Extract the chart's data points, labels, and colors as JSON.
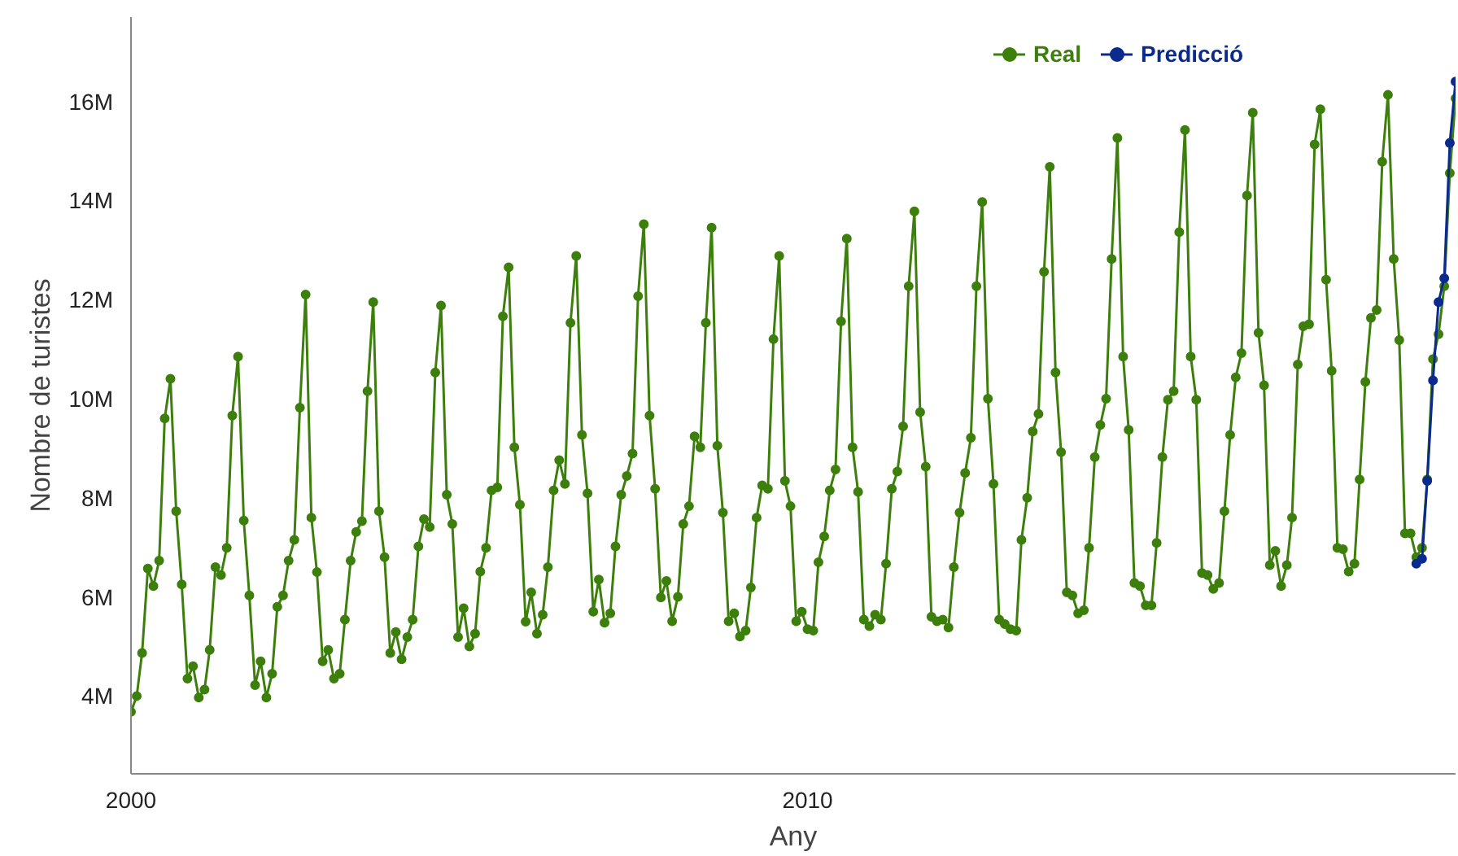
{
  "chart_data": {
    "type": "line",
    "xlabel": "Any",
    "ylabel": "Nombre de turistes",
    "xlim": [
      "2000-01",
      "2019-08"
    ],
    "xticks": [
      {
        "value": "2000-01",
        "label": "2000"
      },
      {
        "value": "2010-01",
        "label": "2010"
      }
    ],
    "ylim": [
      2.43,
      17.7
    ],
    "yticks": [
      {
        "value": 4,
        "label": "4M"
      },
      {
        "value": 6,
        "label": "6M"
      },
      {
        "value": 8,
        "label": "8M"
      },
      {
        "value": 10,
        "label": "10M"
      },
      {
        "value": 12,
        "label": "12M"
      },
      {
        "value": 14,
        "label": "14M"
      },
      {
        "value": 16,
        "label": "16M"
      }
    ],
    "grid": false,
    "legend": "top right",
    "marker": "circle",
    "line_style": "solid",
    "series": [
      {
        "name": "Real",
        "color": "#3d7f0c",
        "x": [
          "2000-01",
          "2000-02",
          "2000-03",
          "2000-04",
          "2000-05",
          "2000-06",
          "2000-07",
          "2000-08",
          "2000-09",
          "2000-10",
          "2000-11",
          "2000-12",
          "2001-01",
          "2001-02",
          "2001-03",
          "2001-04",
          "2001-05",
          "2001-06",
          "2001-07",
          "2001-08",
          "2001-09",
          "2001-10",
          "2001-11",
          "2001-12",
          "2002-01",
          "2002-02",
          "2002-03",
          "2002-04",
          "2002-05",
          "2002-06",
          "2002-07",
          "2002-08",
          "2002-09",
          "2002-10",
          "2002-11",
          "2002-12",
          "2003-01",
          "2003-02",
          "2003-03",
          "2003-04",
          "2003-05",
          "2003-06",
          "2003-07",
          "2003-08",
          "2003-09",
          "2003-10",
          "2003-11",
          "2003-12",
          "2004-01",
          "2004-02",
          "2004-03",
          "2004-04",
          "2004-05",
          "2004-06",
          "2004-07",
          "2004-08",
          "2004-09",
          "2004-10",
          "2004-11",
          "2004-12",
          "2005-01",
          "2005-02",
          "2005-03",
          "2005-04",
          "2005-05",
          "2005-06",
          "2005-07",
          "2005-08",
          "2005-09",
          "2005-10",
          "2005-11",
          "2005-12",
          "2006-01",
          "2006-02",
          "2006-03",
          "2006-04",
          "2006-05",
          "2006-06",
          "2006-07",
          "2006-08",
          "2006-09",
          "2006-10",
          "2006-11",
          "2006-12",
          "2007-01",
          "2007-02",
          "2007-03",
          "2007-04",
          "2007-05",
          "2007-06",
          "2007-07",
          "2007-08",
          "2007-09",
          "2007-10",
          "2007-11",
          "2007-12",
          "2008-01",
          "2008-02",
          "2008-03",
          "2008-04",
          "2008-05",
          "2008-06",
          "2008-07",
          "2008-08",
          "2008-09",
          "2008-10",
          "2008-11",
          "2008-12",
          "2009-01",
          "2009-02",
          "2009-03",
          "2009-04",
          "2009-05",
          "2009-06",
          "2009-07",
          "2009-08",
          "2009-09",
          "2009-10",
          "2009-11",
          "2009-12",
          "2010-01",
          "2010-02",
          "2010-03",
          "2010-04",
          "2010-05",
          "2010-06",
          "2010-07",
          "2010-08",
          "2010-09",
          "2010-10",
          "2010-11",
          "2010-12",
          "2011-01",
          "2011-02",
          "2011-03",
          "2011-04",
          "2011-05",
          "2011-06",
          "2011-07",
          "2011-08",
          "2011-09",
          "2011-10",
          "2011-11",
          "2011-12",
          "2012-01",
          "2012-02",
          "2012-03",
          "2012-04",
          "2012-05",
          "2012-06",
          "2012-07",
          "2012-08",
          "2012-09",
          "2012-10",
          "2012-11",
          "2012-12",
          "2013-01",
          "2013-02",
          "2013-03",
          "2013-04",
          "2013-05",
          "2013-06",
          "2013-07",
          "2013-08",
          "2013-09",
          "2013-10",
          "2013-11",
          "2013-12",
          "2014-01",
          "2014-02",
          "2014-03",
          "2014-04",
          "2014-05",
          "2014-06",
          "2014-07",
          "2014-08",
          "2014-09",
          "2014-10",
          "2014-11",
          "2014-12",
          "2015-01",
          "2015-02",
          "2015-03",
          "2015-04",
          "2015-05",
          "2015-06",
          "2015-07",
          "2015-08",
          "2015-09",
          "2015-10",
          "2015-11",
          "2015-12",
          "2016-01",
          "2016-02",
          "2016-03",
          "2016-04",
          "2016-05",
          "2016-06",
          "2016-07",
          "2016-08",
          "2016-09",
          "2016-10",
          "2016-11",
          "2016-12",
          "2017-01",
          "2017-02",
          "2017-03",
          "2017-04",
          "2017-05",
          "2017-06",
          "2017-07",
          "2017-08",
          "2017-09",
          "2017-10",
          "2017-11",
          "2017-12",
          "2018-01",
          "2018-02",
          "2018-03",
          "2018-04",
          "2018-05",
          "2018-06",
          "2018-07",
          "2018-08",
          "2018-09",
          "2018-10",
          "2018-11",
          "2018-12",
          "2019-01",
          "2019-02",
          "2019-03",
          "2019-04",
          "2019-05",
          "2019-06",
          "2019-07",
          "2019-08"
        ],
        "values": [
          3.68,
          4.0,
          4.87,
          6.57,
          6.22,
          6.73,
          9.6,
          10.4,
          7.73,
          6.25,
          4.35,
          4.6,
          3.97,
          4.13,
          4.93,
          6.6,
          6.44,
          6.99,
          9.66,
          10.85,
          7.54,
          6.03,
          4.22,
          4.7,
          3.97,
          4.45,
          5.8,
          6.03,
          6.73,
          7.15,
          9.82,
          12.1,
          7.6,
          6.5,
          4.7,
          4.93,
          4.35,
          4.45,
          5.54,
          6.73,
          7.31,
          7.53,
          10.15,
          11.95,
          7.73,
          6.8,
          4.87,
          5.29,
          4.74,
          5.19,
          5.54,
          7.02,
          7.57,
          7.41,
          10.53,
          11.88,
          8.06,
          7.47,
          5.19,
          5.77,
          5.0,
          5.26,
          6.51,
          6.99,
          8.15,
          8.21,
          11.66,
          12.65,
          9.02,
          7.86,
          5.5,
          6.09,
          5.26,
          5.64,
          6.6,
          8.15,
          8.76,
          8.28,
          11.53,
          12.88,
          9.27,
          8.09,
          5.7,
          6.35,
          5.48,
          5.67,
          7.02,
          8.06,
          8.44,
          8.89,
          12.07,
          13.52,
          9.66,
          8.18,
          5.99,
          6.32,
          5.51,
          6.0,
          7.47,
          7.83,
          9.24,
          9.02,
          11.53,
          13.45,
          9.05,
          7.7,
          5.51,
          5.67,
          5.2,
          5.32,
          6.19,
          7.6,
          8.25,
          8.18,
          11.2,
          12.88,
          8.34,
          7.83,
          5.51,
          5.7,
          5.35,
          5.32,
          6.7,
          7.22,
          8.15,
          8.57,
          11.56,
          13.23,
          9.02,
          8.12,
          5.54,
          5.41,
          5.64,
          5.54,
          6.67,
          8.18,
          8.53,
          9.44,
          12.27,
          13.78,
          9.73,
          8.63,
          5.6,
          5.51,
          5.54,
          5.38,
          6.6,
          7.7,
          8.5,
          9.21,
          12.27,
          13.97,
          10.0,
          8.28,
          5.54,
          5.45,
          5.35,
          5.32,
          7.15,
          8.0,
          9.34,
          9.69,
          12.56,
          14.68,
          10.53,
          8.92,
          6.09,
          6.03,
          5.67,
          5.73,
          6.99,
          8.82,
          9.47,
          10.0,
          12.82,
          15.26,
          10.85,
          9.37,
          6.28,
          6.22,
          5.83,
          5.83,
          7.09,
          8.82,
          9.98,
          10.15,
          13.36,
          15.42,
          10.85,
          9.98,
          6.48,
          6.44,
          6.16,
          6.28,
          7.73,
          9.27,
          10.43,
          10.92,
          14.1,
          15.77,
          11.33,
          10.27,
          6.64,
          6.93,
          6.22,
          6.64,
          7.6,
          10.69,
          11.46,
          11.5,
          15.13,
          15.84,
          12.4,
          10.56,
          6.99,
          6.96,
          6.51,
          6.67,
          8.37,
          10.34,
          11.63,
          11.79,
          14.78,
          16.13,
          12.82,
          11.18,
          7.28,
          7.28,
          6.8,
          6.99,
          8.37,
          10.8,
          11.3,
          12.27,
          14.55,
          16.06
        ]
      },
      {
        "name": "Predicció",
        "color": "#0b2a8e",
        "x": [
          "2019-01",
          "2019-02",
          "2019-03",
          "2019-04",
          "2019-05",
          "2019-06",
          "2019-07",
          "2019-08"
        ],
        "values": [
          6.67,
          6.77,
          8.34,
          10.37,
          11.95,
          12.43,
          15.16,
          16.4
        ]
      }
    ]
  }
}
